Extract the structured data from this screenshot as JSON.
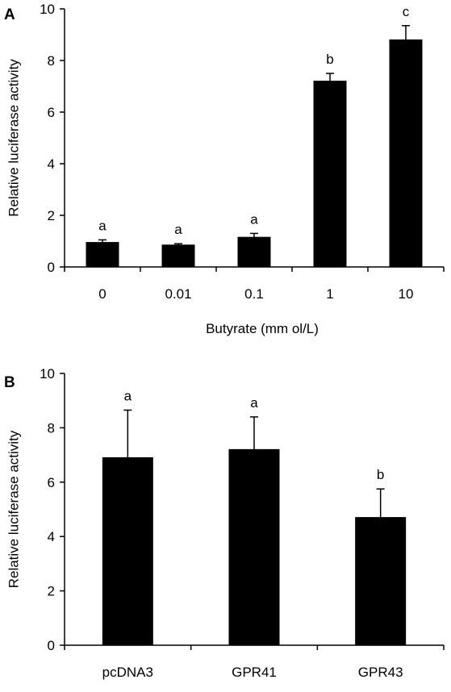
{
  "chart_data": [
    {
      "panel_label": "A",
      "type": "bar",
      "categories": [
        "0",
        "0.01",
        "0.1",
        "1",
        "10"
      ],
      "values": [
        0.95,
        0.85,
        1.15,
        7.2,
        8.8
      ],
      "errors": [
        0.1,
        0.05,
        0.15,
        0.3,
        0.55
      ],
      "significance_letters": [
        "a",
        "a",
        "a",
        "b",
        "c"
      ],
      "xlabel": "Butyrate (mm ol/L)",
      "ylabel": "Relative luciferase activity",
      "ylim": [
        0,
        10
      ],
      "yticks": [
        "0",
        "2",
        "4",
        "6",
        "8",
        "10"
      ],
      "bar_color": "#000000",
      "grid": false
    },
    {
      "panel_label": "B",
      "type": "bar",
      "categories": [
        "pcDNA3",
        "GPR41",
        "GPR43"
      ],
      "values": [
        6.9,
        7.2,
        4.7
      ],
      "errors": [
        1.75,
        1.2,
        1.05
      ],
      "significance_letters": [
        "a",
        "a",
        "b"
      ],
      "xlabel": "",
      "ylabel": "Relative luciferase activity",
      "ylim": [
        0,
        10
      ],
      "yticks": [
        "0",
        "2",
        "4",
        "6",
        "8",
        "10"
      ],
      "bar_color": "#000000",
      "grid": false
    }
  ]
}
